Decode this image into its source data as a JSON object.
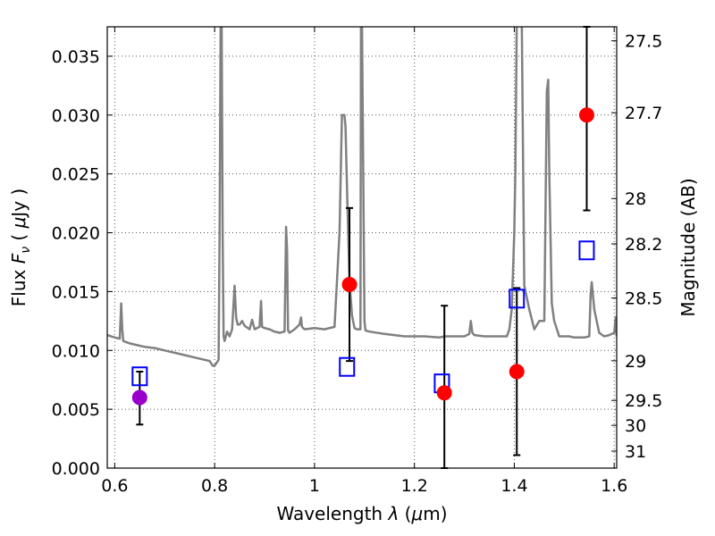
{
  "chart_data": {
    "type": "scatter",
    "xlabel": "Wavelength  λ (μm)",
    "ylabel": "Flux  F_ν  ( μJy )",
    "y2label": "Magnitude (AB)",
    "xlim": [
      0.585,
      1.605
    ],
    "ylim": [
      0.0,
      0.0375
    ],
    "grid": true,
    "x_ticks": [
      0.6,
      0.8,
      1.0,
      1.2,
      1.4,
      1.6
    ],
    "x_tick_labels": [
      "0.6",
      "0.8",
      "1",
      "1.2",
      "1.4",
      "1.6"
    ],
    "y_ticks": [
      0.0,
      0.005,
      0.01,
      0.015,
      0.02,
      0.025,
      0.03,
      0.035
    ],
    "y_tick_labels": [
      "0.000",
      "0.005",
      "0.010",
      "0.015",
      "0.020",
      "0.025",
      "0.030",
      "0.035"
    ],
    "y2_ticks": [
      27.5,
      27.7,
      28,
      28.2,
      28.5,
      29,
      29.5,
      30,
      31
    ],
    "y2_tick_labels": [
      "27.5",
      "27.7",
      "28",
      "28.2",
      "28.5",
      "29",
      "29.5",
      "30",
      "31"
    ],
    "colors": {
      "spectrum": "#808080",
      "model_points": "#0000ff",
      "observed_points": "#ff0000",
      "special_point": "#9900cc",
      "errorbars": "#000000",
      "grid": "#555555"
    },
    "spectrum": {
      "x": [
        0.585,
        0.6,
        0.61,
        0.613,
        0.615,
        0.617,
        0.63,
        0.65,
        0.66,
        0.68,
        0.7,
        0.72,
        0.74,
        0.76,
        0.78,
        0.79,
        0.796,
        0.8,
        0.805,
        0.808,
        0.81,
        0.812,
        0.814,
        0.816,
        0.818,
        0.82,
        0.825,
        0.83,
        0.835,
        0.84,
        0.843,
        0.846,
        0.85,
        0.855,
        0.86,
        0.87,
        0.875,
        0.88,
        0.89,
        0.893,
        0.895,
        0.9,
        0.91,
        0.92,
        0.93,
        0.94,
        0.943,
        0.945,
        0.947,
        0.95,
        0.96,
        0.97,
        0.973,
        0.975,
        0.98,
        1.0,
        1.02,
        1.04,
        1.05,
        1.055,
        1.06,
        1.062,
        1.065,
        1.07,
        1.075,
        1.08,
        1.085,
        1.09,
        1.092,
        1.093,
        1.095,
        1.1,
        1.102,
        1.11,
        1.14,
        1.16,
        1.18,
        1.2,
        1.22,
        1.25,
        1.26,
        1.28,
        1.3,
        1.31,
        1.313,
        1.316,
        1.32,
        1.34,
        1.36,
        1.38,
        1.385,
        1.39,
        1.395,
        1.4,
        1.402,
        1.405,
        1.41,
        1.412,
        1.415,
        1.42,
        1.43,
        1.44,
        1.45,
        1.46,
        1.462,
        1.465,
        1.468,
        1.47,
        1.475,
        1.48,
        1.49,
        1.495,
        1.5,
        1.51,
        1.52,
        1.53,
        1.54,
        1.55,
        1.553,
        1.555,
        1.56,
        1.565,
        1.57,
        1.58,
        1.59,
        1.6,
        1.603,
        1.605
      ],
      "y": [
        0.0113,
        0.0111,
        0.011,
        0.014,
        0.0118,
        0.0108,
        0.0106,
        0.0104,
        0.0103,
        0.0102,
        0.01,
        0.0098,
        0.0096,
        0.0094,
        0.0092,
        0.0091,
        0.0087,
        0.0087,
        0.009,
        0.0092,
        0.02,
        0.038,
        0.038,
        0.02,
        0.0112,
        0.0108,
        0.0116,
        0.0112,
        0.0118,
        0.0155,
        0.0128,
        0.0122,
        0.0122,
        0.0125,
        0.0121,
        0.0118,
        0.0126,
        0.0118,
        0.012,
        0.0142,
        0.012,
        0.0119,
        0.0118,
        0.0116,
        0.0115,
        0.0116,
        0.0205,
        0.0185,
        0.0117,
        0.0115,
        0.0118,
        0.0122,
        0.0128,
        0.012,
        0.0118,
        0.0119,
        0.0118,
        0.012,
        0.02,
        0.03,
        0.03,
        0.029,
        0.024,
        0.016,
        0.013,
        0.0119,
        0.0118,
        0.0118,
        0.0118,
        0.038,
        0.038,
        0.0125,
        0.0117,
        0.0116,
        0.0114,
        0.0113,
        0.0112,
        0.0112,
        0.0112,
        0.0111,
        0.0112,
        0.0112,
        0.0112,
        0.0114,
        0.0125,
        0.0115,
        0.0113,
        0.0112,
        0.0112,
        0.0112,
        0.0112,
        0.0118,
        0.0135,
        0.02,
        0.025,
        0.038,
        0.038,
        0.038,
        0.038,
        0.0155,
        0.0135,
        0.0118,
        0.0125,
        0.0125,
        0.02,
        0.032,
        0.033,
        0.025,
        0.014,
        0.0125,
        0.0112,
        0.0112,
        0.0112,
        0.0112,
        0.0111,
        0.0111,
        0.0111,
        0.0112,
        0.0148,
        0.0158,
        0.0135,
        0.0125,
        0.0115,
        0.0112,
        0.0113,
        0.0115,
        0.0128,
        0.0112
      ]
    },
    "model_points": [
      {
        "x": 0.65,
        "y": 0.0078
      },
      {
        "x": 1.065,
        "y": 0.0086
      },
      {
        "x": 1.255,
        "y": 0.0072
      },
      {
        "x": 1.405,
        "y": 0.0144
      },
      {
        "x": 1.545,
        "y": 0.0185
      }
    ],
    "observed_points": [
      {
        "x": 1.07,
        "y": 0.0156,
        "yerr_low": 0.0091,
        "yerr_high": 0.0221
      },
      {
        "x": 1.26,
        "y": 0.0064,
        "yerr_low": 0.0,
        "yerr_high": 0.0138
      },
      {
        "x": 1.405,
        "y": 0.0082,
        "yerr_low": 0.0011,
        "yerr_high": 0.0153
      },
      {
        "x": 1.545,
        "y": 0.03,
        "yerr_low": 0.0219,
        "yerr_high": 0.0375
      }
    ],
    "special_points": [
      {
        "x": 0.65,
        "y": 0.006,
        "yerr_low": 0.0037,
        "yerr_high": 0.0082
      }
    ]
  }
}
